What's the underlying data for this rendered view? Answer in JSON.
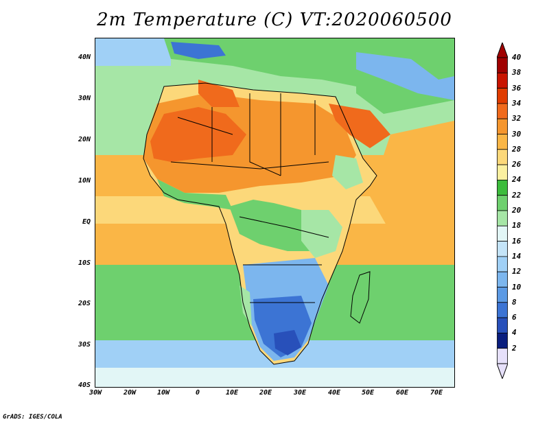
{
  "title": "2m Temperature (C) VT:2020060500",
  "footer": "GrADS: IGES/COLA",
  "y_axis": {
    "labels": [
      "40N",
      "30N",
      "20N",
      "10N",
      "EQ",
      "10S",
      "20S",
      "30S",
      "40S"
    ]
  },
  "x_axis": {
    "labels": [
      "30W",
      "20W",
      "10W",
      "0",
      "10E",
      "20E",
      "30E",
      "40E",
      "50E",
      "60E",
      "70E"
    ]
  },
  "colorbar": {
    "levels": [
      "40",
      "38",
      "36",
      "34",
      "32",
      "30",
      "28",
      "26",
      "24",
      "22",
      "20",
      "18",
      "16",
      "14",
      "12",
      "10",
      "8",
      "6",
      "4",
      "2"
    ],
    "colors": [
      "#a00000",
      "#c81400",
      "#e03c00",
      "#f06a1c",
      "#f5962e",
      "#fab646",
      "#fcd87a",
      "#fbf0a0",
      "#3cbc3c",
      "#6ed06e",
      "#a6e6a6",
      "#e2f6f6",
      "#c4e4f8",
      "#a0d0f6",
      "#7cb6ee",
      "#5c9ae4",
      "#3c74d4",
      "#2850ba",
      "#0a1e7e",
      "#e6e0fa"
    ],
    "top_arrow_color": "#a00000",
    "bottom_arrow_color": "#e6e0fa"
  },
  "map": {
    "ocean_north_color": "#a6e6a6",
    "ocean_tropical_color": "#fab646",
    "ocean_south_color": "#6ed06e",
    "ocean_far_south_color": "#a0d0f6",
    "sahara_color": "#f06a1c",
    "sahel_color": "#f5962e",
    "central_color": "#fcd87a",
    "highland_color": "#7cb6ee",
    "south_color": "#3c74d4",
    "med_color": "#7cb6ee"
  }
}
